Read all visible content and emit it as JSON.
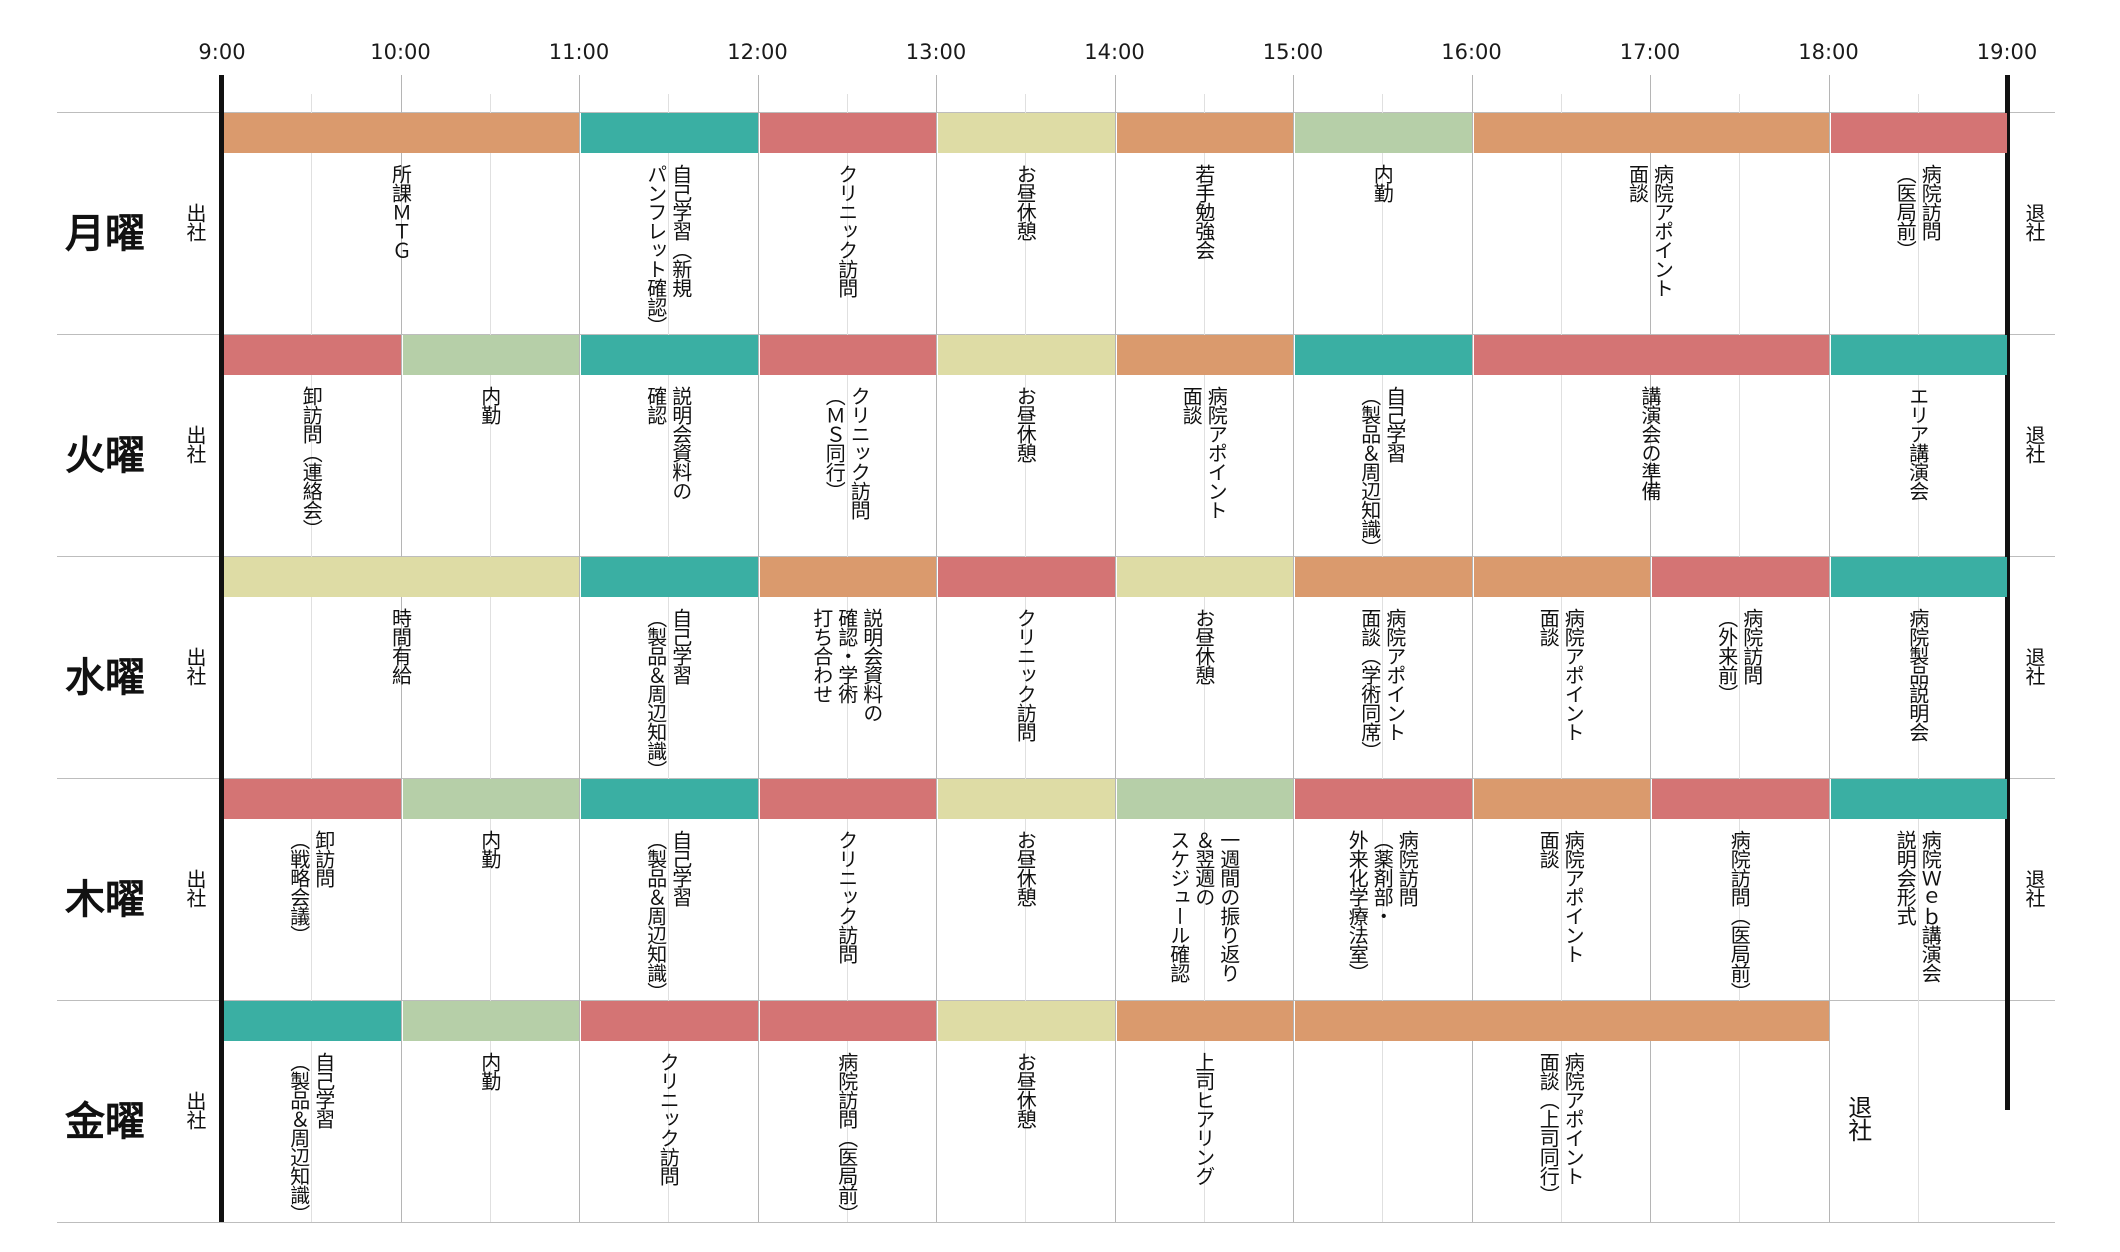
{
  "colors": {
    "orange": "#da9a6d",
    "teal": "#3aafa3",
    "red": "#d47474",
    "yellow": "#dedca5",
    "green": "#b6cfa8"
  },
  "times": [
    "9:00",
    "10:00",
    "11:00",
    "12:00",
    "13:00",
    "14:00",
    "15:00",
    "16:00",
    "17:00",
    "18:00",
    "19:00"
  ],
  "days": [
    {
      "label": "月曜",
      "start": "出社",
      "end": "退社",
      "blocks": [
        {
          "from": 9,
          "to": 11,
          "color": "orange",
          "lines": [
            "所課ＭＴＧ"
          ]
        },
        {
          "from": 11,
          "to": 12,
          "color": "teal",
          "lines": [
            "自己学習（新規",
            "パンフレット確認）"
          ]
        },
        {
          "from": 12,
          "to": 13,
          "color": "red",
          "lines": [
            "クリニック訪問"
          ]
        },
        {
          "from": 13,
          "to": 14,
          "color": "yellow",
          "lines": [
            "お昼休憩"
          ]
        },
        {
          "from": 14,
          "to": 15,
          "color": "orange",
          "lines": [
            "若手勉強会"
          ]
        },
        {
          "from": 15,
          "to": 16,
          "color": "green",
          "lines": [
            "内勤"
          ]
        },
        {
          "from": 16,
          "to": 18,
          "color": "orange",
          "lines": [
            "病院アポイント",
            "面談"
          ]
        },
        {
          "from": 18,
          "to": 19,
          "color": "red",
          "lines": [
            "病院訪問",
            "（医局前）"
          ]
        }
      ]
    },
    {
      "label": "火曜",
      "start": "出社",
      "end": "退社",
      "blocks": [
        {
          "from": 9,
          "to": 10,
          "color": "red",
          "lines": [
            "卸訪問（連絡会）"
          ]
        },
        {
          "from": 10,
          "to": 11,
          "color": "green",
          "lines": [
            "内勤"
          ]
        },
        {
          "from": 11,
          "to": 12,
          "color": "teal",
          "lines": [
            "説明会資料の",
            "確認"
          ]
        },
        {
          "from": 12,
          "to": 13,
          "color": "red",
          "lines": [
            "クリニック訪問",
            "（ＭＳ同行）"
          ]
        },
        {
          "from": 13,
          "to": 14,
          "color": "yellow",
          "lines": [
            "お昼休憩"
          ]
        },
        {
          "from": 14,
          "to": 15,
          "color": "orange",
          "lines": [
            "病院アポイント",
            "面談"
          ]
        },
        {
          "from": 15,
          "to": 16,
          "color": "teal",
          "lines": [
            "自己学習",
            "（製品＆周辺知識）"
          ]
        },
        {
          "from": 16,
          "to": 18,
          "color": "red",
          "lines": [
            "講演会の準備"
          ]
        },
        {
          "from": 18,
          "to": 19,
          "color": "teal",
          "lines": [
            "エリア講演会"
          ]
        }
      ]
    },
    {
      "label": "水曜",
      "start": "出社",
      "end": "退社",
      "blocks": [
        {
          "from": 9,
          "to": 11,
          "color": "yellow",
          "lines": [
            "時間有給"
          ]
        },
        {
          "from": 11,
          "to": 12,
          "color": "teal",
          "lines": [
            "自己学習",
            "（製品＆周辺知識）"
          ]
        },
        {
          "from": 12,
          "to": 13,
          "color": "orange",
          "lines": [
            "説明会資料の",
            "確認・学術",
            "打ち合わせ"
          ]
        },
        {
          "from": 13,
          "to": 14,
          "color": "red",
          "lines": [
            "クリニック訪問"
          ]
        },
        {
          "from": 14,
          "to": 15,
          "color": "yellow",
          "lines": [
            "お昼休憩"
          ]
        },
        {
          "from": 15,
          "to": 16,
          "color": "orange",
          "lines": [
            "病院アポイント",
            "面談（学術同席）"
          ]
        },
        {
          "from": 16,
          "to": 17,
          "color": "orange",
          "lines": [
            "病院アポイント",
            "面談"
          ]
        },
        {
          "from": 17,
          "to": 18,
          "color": "red",
          "lines": [
            "病院訪問",
            "（外来前）"
          ]
        },
        {
          "from": 18,
          "to": 19,
          "color": "teal",
          "lines": [
            "病院製品説明会"
          ]
        }
      ]
    },
    {
      "label": "木曜",
      "start": "出社",
      "end": "退社",
      "blocks": [
        {
          "from": 9,
          "to": 10,
          "color": "red",
          "lines": [
            "卸訪問",
            "（戦略会議）"
          ]
        },
        {
          "from": 10,
          "to": 11,
          "color": "green",
          "lines": [
            "内勤"
          ]
        },
        {
          "from": 11,
          "to": 12,
          "color": "teal",
          "lines": [
            "自己学習",
            "（製品＆周辺知識）"
          ]
        },
        {
          "from": 12,
          "to": 13,
          "color": "red",
          "lines": [
            "クリニック訪問"
          ]
        },
        {
          "from": 13,
          "to": 14,
          "color": "yellow",
          "lines": [
            "お昼休憩"
          ]
        },
        {
          "from": 14,
          "to": 15,
          "color": "green",
          "lines": [
            "一週間の振り返り",
            "＆翌週の",
            "スケジュール確認"
          ]
        },
        {
          "from": 15,
          "to": 16,
          "color": "red",
          "lines": [
            "病院訪問",
            "（薬剤部・",
            "外来化学療法室）"
          ]
        },
        {
          "from": 16,
          "to": 17,
          "color": "orange",
          "lines": [
            "病院アポイント",
            "面談"
          ]
        },
        {
          "from": 17,
          "to": 18,
          "color": "red",
          "lines": [
            "病院訪問（医局前）"
          ]
        },
        {
          "from": 18,
          "to": 19,
          "color": "teal",
          "lines": [
            "病院Ｗｅｂ講演会",
            "説明会形式"
          ]
        }
      ]
    },
    {
      "label": "金曜",
      "start": "出社",
      "end": "",
      "blocks": [
        {
          "from": 9,
          "to": 10,
          "color": "teal",
          "lines": [
            "自己学習",
            "（製品＆周辺知識）"
          ]
        },
        {
          "from": 10,
          "to": 11,
          "color": "green",
          "lines": [
            "内勤"
          ]
        },
        {
          "from": 11,
          "to": 12,
          "color": "red",
          "lines": [
            "クリニック訪問"
          ]
        },
        {
          "from": 12,
          "to": 13,
          "color": "red",
          "lines": [
            "病院訪問（医局前）"
          ]
        },
        {
          "from": 13,
          "to": 14,
          "color": "yellow",
          "lines": [
            "お昼休憩"
          ]
        },
        {
          "from": 14,
          "to": 15,
          "color": "orange",
          "lines": [
            "上司ヒアリング"
          ]
        },
        {
          "from": 15,
          "to": 18,
          "color": "orange",
          "lines": [
            "病院アポイント",
            "面談（上司同行）"
          ]
        }
      ],
      "after": {
        "from": 18,
        "to": 19,
        "lines": [
          "退社"
        ]
      }
    }
  ]
}
